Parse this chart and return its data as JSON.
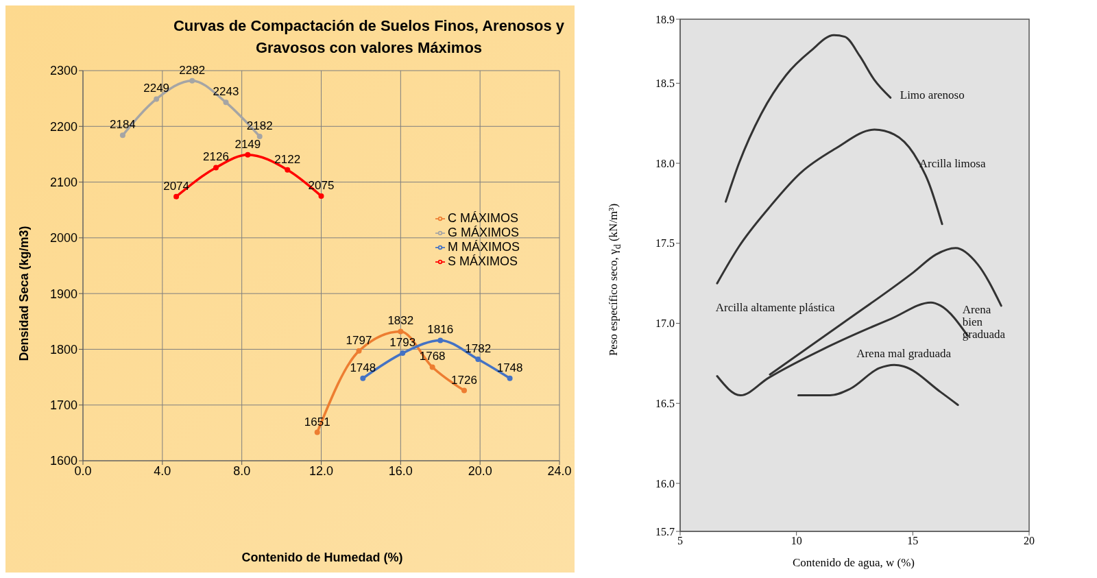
{
  "chart_data": [
    {
      "type": "line",
      "title": "Curvas de Compactación de Suelos Finos, Arenosos y Gravosos con valores Máximos",
      "xlabel": "Contenido de Humedad (%)",
      "ylabel": "Densidad Seca (kg/m3)",
      "xlim": [
        0,
        24
      ],
      "xticks": [
        {
          "value": 0,
          "label": "0.0"
        },
        {
          "value": 4,
          "label": "4.0"
        },
        {
          "value": 8,
          "label": "8.0"
        },
        {
          "value": 12,
          "label": "12.0"
        },
        {
          "value": 16,
          "label": "16.0"
        },
        {
          "value": 20,
          "label": "20.0"
        },
        {
          "value": 24,
          "label": "24.0"
        }
      ],
      "ylim": [
        1600,
        2300
      ],
      "yticks": [
        1600,
        1700,
        1800,
        1900,
        2000,
        2100,
        2200,
        2300
      ],
      "grid": true,
      "legend": "right",
      "marker": "circle",
      "data_labels": true,
      "series": [
        {
          "name": "C MÁXIMOS",
          "color": "#ed7d31",
          "x": [
            11.8,
            13.9,
            16.0,
            17.6,
            19.2
          ],
          "values": [
            1651,
            1797,
            1832,
            1768,
            1726
          ]
        },
        {
          "name": "M MÁXIMOS",
          "color": "#4472c4",
          "x": [
            14.1,
            16.1,
            18.0,
            19.9,
            21.5
          ],
          "values": [
            1748,
            1793,
            1816,
            1782,
            1748
          ]
        },
        {
          "name": "G MÁXIMOS",
          "color": "#a5a5a5",
          "x": [
            2.0,
            3.7,
            5.5,
            7.2,
            8.9
          ],
          "values": [
            2184,
            2249,
            2282,
            2243,
            2182
          ]
        },
        {
          "name": "S MÁXIMOS",
          "color": "#ff0000",
          "x": [
            4.7,
            6.7,
            8.3,
            10.3,
            12.0
          ],
          "values": [
            2074,
            2126,
            2149,
            2122,
            2075
          ]
        }
      ]
    },
    {
      "type": "line",
      "xlabel": "Contenido de agua, w (%)",
      "ylabel": "Peso específico seco, γ$_{d}$ (kN/m³)",
      "xlim": [
        5,
        20
      ],
      "xticks": [
        5,
        10,
        15,
        20
      ],
      "ylim": [
        15.7,
        18.9
      ],
      "yticks": [
        15.7,
        {
          "value": 16,
          "label": "16.0"
        },
        16.5,
        {
          "value": 17,
          "label": "17.0"
        },
        17.5,
        {
          "value": 18,
          "label": "18.0"
        },
        18.5,
        18.9
      ],
      "grid": false,
      "marker": "none",
      "series": [
        {
          "name": "Limo arenoso",
          "color": "#333333",
          "x": [
            6.96,
            7.53,
            8.49,
            9.55,
            10.6,
            11.61,
            12.08,
            12.72,
            13.35,
            14.04
          ],
          "values": [
            17.76,
            18.0,
            18.31,
            18.55,
            18.7,
            18.8,
            18.79,
            18.67,
            18.52,
            18.41
          ]
        },
        {
          "name": "Arcilla limosa",
          "color": "#333333",
          "x": [
            6.59,
            7.53,
            8.81,
            10.18,
            11.66,
            13.35,
            14.2,
            15.04,
            15.68,
            16.26
          ],
          "values": [
            17.25,
            17.48,
            17.72,
            17.94,
            18.09,
            18.21,
            18.18,
            18.06,
            17.88,
            17.62
          ]
        },
        {
          "name": "Arcilla altamente plástica",
          "color": "#333333",
          "x": [
            8.86,
            11.98,
            15.04,
            16.0,
            16.84,
            17.78,
            18.8
          ],
          "values": [
            16.68,
            17.0,
            17.32,
            17.43,
            17.47,
            17.37,
            17.11
          ]
        },
        {
          "name": "Arena\nbien\ngraduada",
          "color": "#333333",
          "x": [
            6.59,
            7.59,
            8.81,
            11.45,
            14.09,
            15.78,
            16.2,
            17.37
          ],
          "values": [
            16.67,
            16.55,
            16.66,
            16.86,
            17.03,
            17.13,
            17.11,
            16.92
          ]
        },
        {
          "name": "Arena mal graduada",
          "color": "#333333",
          "x": [
            10.08,
            11.45,
            12.3,
            13.56,
            14.2,
            14.62,
            16.2,
            16.94
          ],
          "values": [
            16.55,
            16.55,
            16.59,
            16.72,
            16.74,
            16.73,
            16.57,
            16.49
          ]
        }
      ]
    }
  ]
}
